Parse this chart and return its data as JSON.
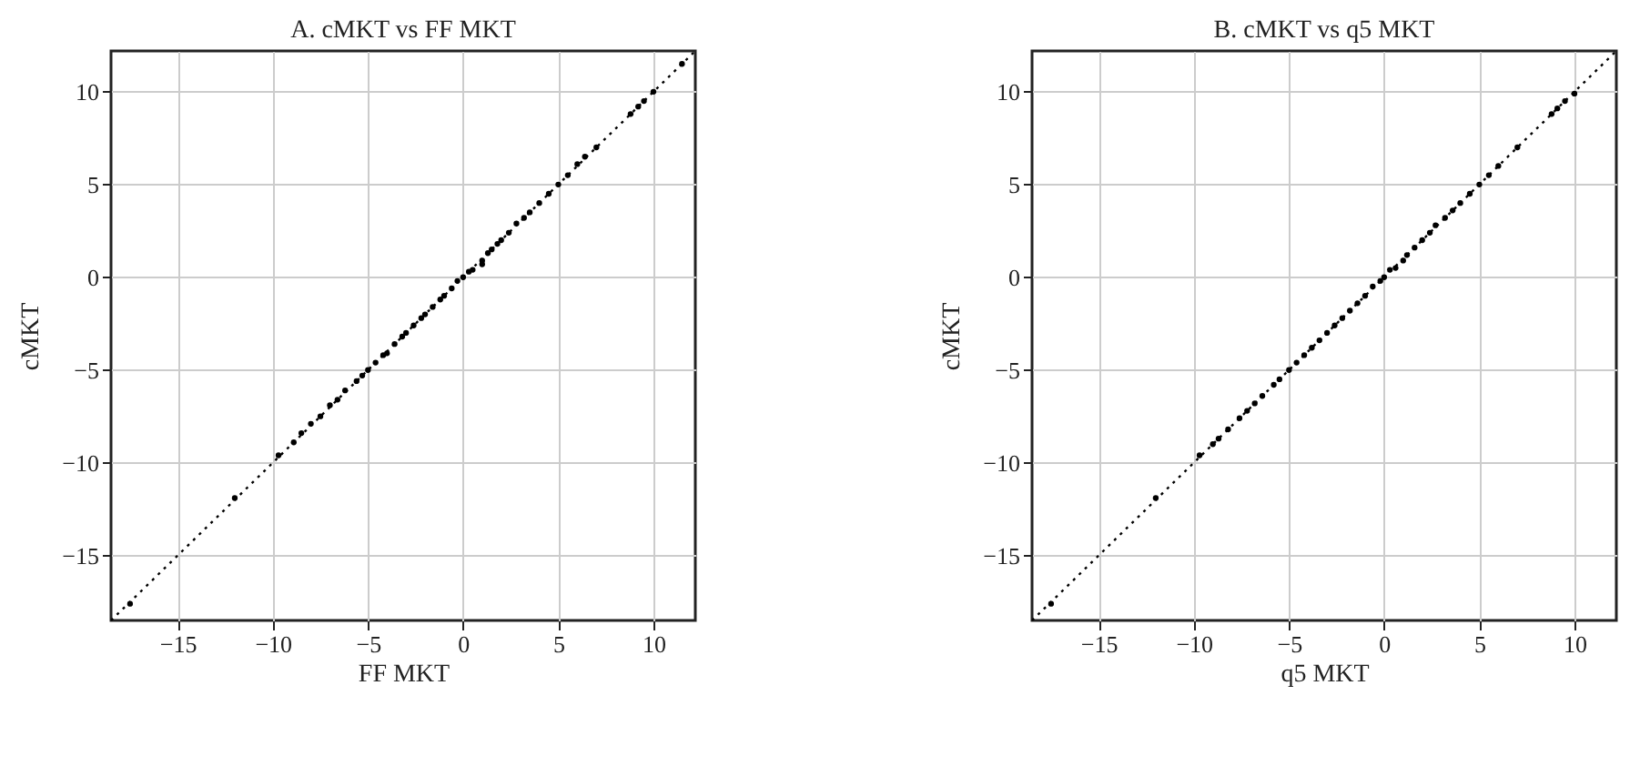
{
  "chart_data": [
    {
      "type": "scatter",
      "title": "A. cMKT vs FF MKT",
      "xlabel": "FF MKT",
      "ylabel": "cMKT",
      "xlim": [
        -18.5,
        12.2
      ],
      "ylim": [
        -18.5,
        12.2
      ],
      "xticks": [
        -15,
        -10,
        -5,
        0,
        5,
        10
      ],
      "yticks": [
        -15,
        -10,
        -5,
        0,
        5,
        10
      ],
      "grid": true,
      "series": [
        {
          "color": "#000000",
          "marker": "circle",
          "x": [
            -17.5,
            -12,
            -9.7,
            -8.9,
            -8.5,
            -8,
            -7.5,
            -7,
            -6.6,
            -6.2,
            -5.6,
            -5.3,
            -5,
            -4.6,
            -4.2,
            -4,
            -3.6,
            -3.2,
            -3,
            -2.6,
            -2.2,
            -2,
            -1.6,
            -1.2,
            -1,
            -0.6,
            -0.3,
            0,
            0.3,
            0.5,
            1,
            1,
            1.3,
            1.5,
            1.8,
            2,
            2.4,
            2.8,
            3.2,
            3.5,
            4,
            4.5,
            5,
            5.5,
            6,
            6.4,
            7,
            8.8,
            9.2,
            9.5,
            10,
            11.5
          ],
          "values": [
            -17.6,
            -11.9,
            -9.6,
            -8.9,
            -8.4,
            -7.9,
            -7.5,
            -6.9,
            -6.6,
            -6.1,
            -5.6,
            -5.3,
            -5,
            -4.6,
            -4.2,
            -4.1,
            -3.6,
            -3.2,
            -3,
            -2.6,
            -2.2,
            -2,
            -1.6,
            -1.2,
            -1,
            -0.6,
            -0.2,
            0,
            0.3,
            0.4,
            0.7,
            0.9,
            1.3,
            1.5,
            1.8,
            2,
            2.4,
            2.9,
            3.2,
            3.5,
            4,
            4.5,
            5,
            5.5,
            6.1,
            6.5,
            7,
            8.8,
            9.2,
            9.5,
            10,
            11.5
          ]
        },
        {
          "type": "line",
          "line_style": "dotted",
          "color": "#000000",
          "x": [
            -18.5,
            12.2
          ],
          "values": [
            -18.5,
            12.2
          ]
        }
      ]
    },
    {
      "type": "scatter",
      "title": "B. cMKT vs q5 MKT",
      "xlabel": "q5 MKT",
      "ylabel": "cMKT",
      "xlim": [
        -18.5,
        12.2
      ],
      "ylim": [
        -18.5,
        12.2
      ],
      "xticks": [
        -15,
        -10,
        -5,
        0,
        5,
        10
      ],
      "yticks": [
        -15,
        -10,
        -5,
        0,
        5,
        10
      ],
      "grid": true,
      "series": [
        {
          "color": "#000000",
          "marker": "circle",
          "x": [
            -17.5,
            -12,
            -9.7,
            -9,
            -8.7,
            -8.2,
            -7.6,
            -7.2,
            -6.8,
            -6.4,
            -5.8,
            -5.5,
            -5,
            -4.6,
            -4.2,
            -3.8,
            -3.4,
            -3,
            -2.6,
            -2.2,
            -1.8,
            -1.4,
            -1,
            -0.6,
            -0.2,
            0,
            0.3,
            0.6,
            1,
            1.2,
            1.6,
            2,
            2.4,
            2.7,
            3.2,
            3.6,
            4,
            4.5,
            5,
            5.5,
            6,
            7,
            8.8,
            9.1,
            9.5,
            10
          ],
          "values": [
            -17.6,
            -11.9,
            -9.6,
            -9,
            -8.7,
            -8.2,
            -7.6,
            -7.2,
            -6.8,
            -6.4,
            -5.8,
            -5.5,
            -5,
            -4.6,
            -4.2,
            -3.8,
            -3.4,
            -3,
            -2.6,
            -2.2,
            -1.8,
            -1.4,
            -1,
            -0.5,
            -0.2,
            0,
            0.4,
            0.5,
            0.9,
            1.2,
            1.6,
            2,
            2.4,
            2.8,
            3.2,
            3.6,
            4,
            4.5,
            5,
            5.5,
            6,
            7,
            8.8,
            9.1,
            9.5,
            9.9
          ]
        },
        {
          "type": "line",
          "line_style": "dotted",
          "color": "#000000",
          "x": [
            -18.5,
            12.2
          ],
          "values": [
            -18.5,
            12.2
          ]
        }
      ]
    }
  ]
}
